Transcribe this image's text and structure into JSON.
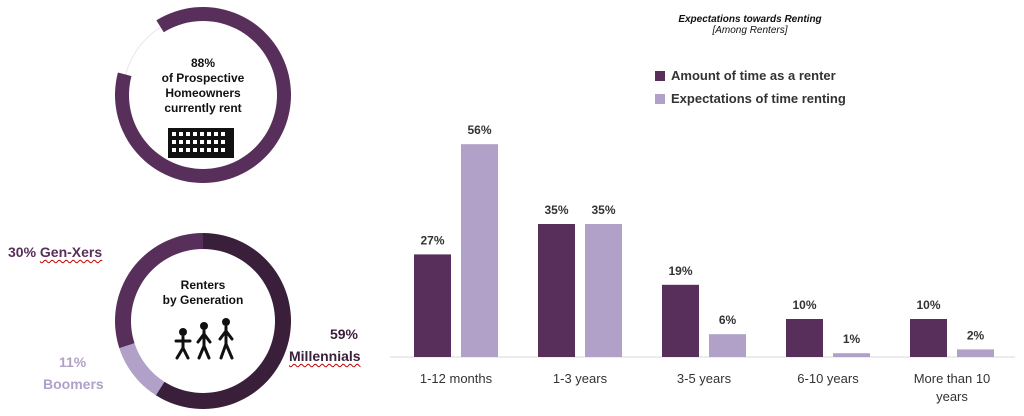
{
  "colors": {
    "dark_purple": "#582f5a",
    "light_purple": "#b1a0c8",
    "darkest_purple": "#3a1f3b",
    "text_dark": "#333333"
  },
  "donut_top": {
    "value_pct": 88,
    "line1": "88%",
    "line2": "of Prospective",
    "line3": "Homeowners",
    "line4": "currently rent",
    "icon": "apartment-building-icon"
  },
  "donut_bottom": {
    "line1": "Renters",
    "line2": "by Generation",
    "icon": "walking-people-icon",
    "segments": [
      {
        "label_pct": "30%",
        "label_name": "Gen-Xers",
        "value": 30
      },
      {
        "label_pct": "59%",
        "label_name": "Millennials",
        "value": 59
      },
      {
        "label_pct": "11%",
        "label_name": "Boomers",
        "value": 11
      }
    ]
  },
  "chart_data": {
    "type": "bar",
    "title": "Expectations towards Renting",
    "subtitle": "[Among Renters]",
    "categories": [
      "1-12 months",
      "1-3 years",
      "3-5 years",
      "6-10 years",
      "More than 10 years"
    ],
    "category_lines": [
      [
        "1-12 months"
      ],
      [
        "1-3 years"
      ],
      [
        "3-5 years"
      ],
      [
        "6-10 years"
      ],
      [
        "More than 10",
        "years"
      ]
    ],
    "series": [
      {
        "name": "Amount of time as a renter",
        "values": [
          27,
          35,
          19,
          10,
          10
        ],
        "labels": [
          "27%",
          "35%",
          "19%",
          "10%",
          "10%"
        ]
      },
      {
        "name": "Expectations of time renting",
        "values": [
          56,
          35,
          6,
          1,
          2
        ],
        "labels": [
          "56%",
          "35%",
          "6%",
          "1%",
          "2%"
        ]
      }
    ],
    "ylim": [
      0,
      60
    ],
    "grid": false,
    "legend_position": "top-right"
  }
}
